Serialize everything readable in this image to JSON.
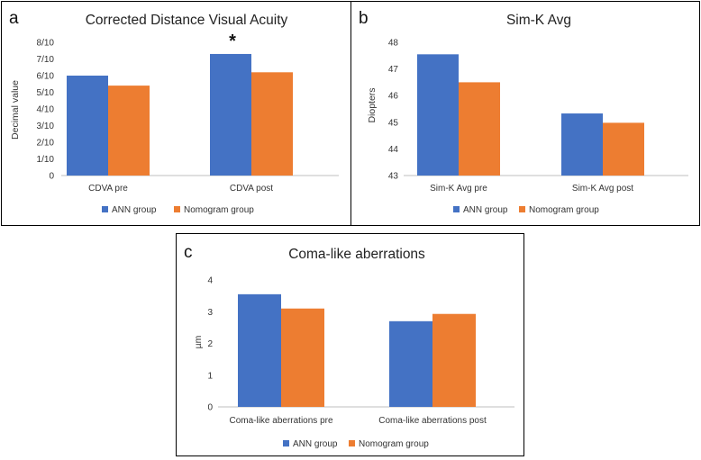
{
  "colors": {
    "ann": "#4472C4",
    "nomogram": "#ED7D31",
    "axis": "#BFBFBF"
  },
  "chart_data": [
    {
      "panel": "a",
      "type": "bar",
      "title": "Corrected Distance Visual Acuity",
      "xlabel": "",
      "ylabel": "Decimal value",
      "categories": [
        "CDVA pre",
        "CDVA post"
      ],
      "series": [
        {
          "name": "ANN group",
          "values": [
            6.0,
            7.3
          ]
        },
        {
          "name": "Nomogram group",
          "values": [
            5.4,
            6.2
          ]
        }
      ],
      "ylim": [
        0,
        8
      ],
      "yticks": [
        "0",
        "1/10",
        "2/10",
        "3/10",
        "4/10",
        "5/10",
        "6/10",
        "7/10",
        "8/10"
      ],
      "annotation": "*",
      "legend": "bottom"
    },
    {
      "panel": "b",
      "type": "bar",
      "title": "Sim-K Avg",
      "xlabel": "",
      "ylabel": "Diopters",
      "categories": [
        "Sim-K Avg pre",
        "Sim-K Avg post"
      ],
      "series": [
        {
          "name": "ANN group",
          "values": [
            47.55,
            45.33
          ]
        },
        {
          "name": "Nomogram group",
          "values": [
            46.5,
            44.98
          ]
        }
      ],
      "ylim": [
        43,
        48
      ],
      "yticks": [
        "43",
        "44",
        "45",
        "46",
        "47",
        "48"
      ],
      "legend": "bottom"
    },
    {
      "panel": "c",
      "type": "bar",
      "title": "Coma-like aberrations",
      "xlabel": "",
      "ylabel": "µm",
      "categories": [
        "Coma-like aberrations pre",
        "Coma-like aberrations post"
      ],
      "series": [
        {
          "name": "ANN group",
          "values": [
            3.55,
            2.7
          ]
        },
        {
          "name": "Nomogram group",
          "values": [
            3.1,
            2.93
          ]
        }
      ],
      "ylim": [
        0,
        4
      ],
      "yticks": [
        "0",
        "1",
        "2",
        "3",
        "4"
      ],
      "legend": "bottom"
    }
  ]
}
